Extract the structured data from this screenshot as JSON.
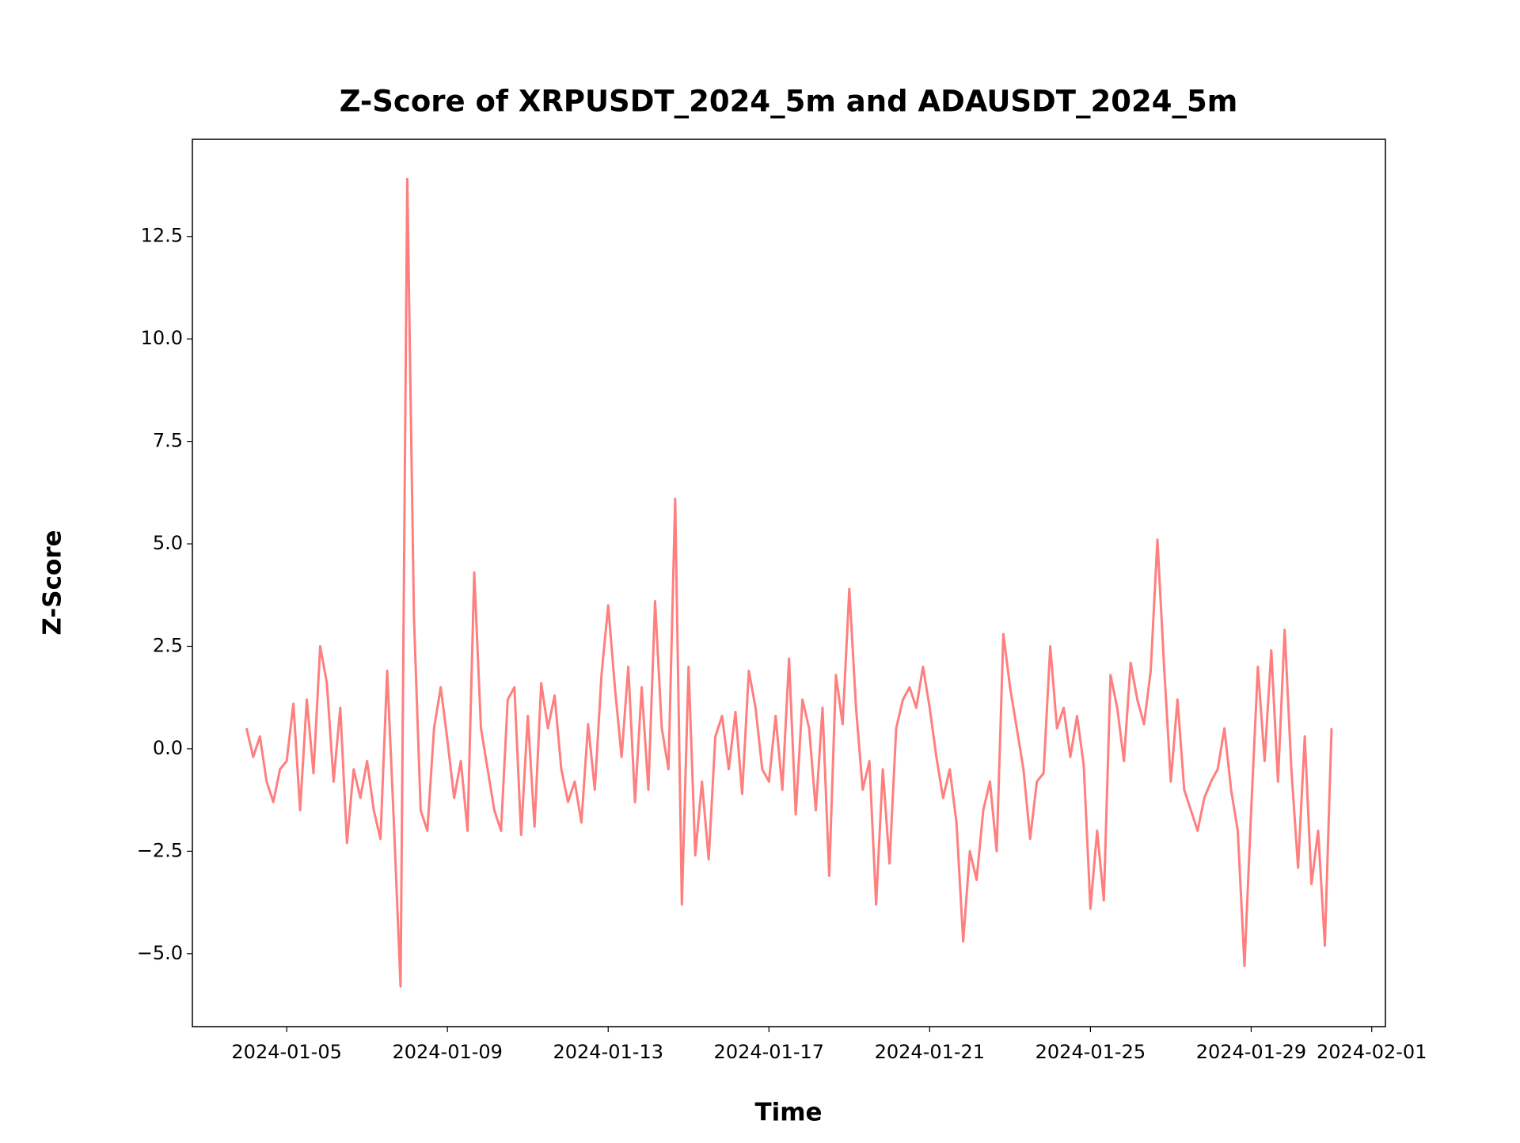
{
  "chart_data": {
    "type": "line",
    "title": "Z-Score of XRPUSDT_2024_5m and ADAUSDT_2024_5m",
    "xlabel": "Time",
    "ylabel": "Z-Score",
    "x": [
      "2024-01-04 00:00",
      "2024-01-04 04:00",
      "2024-01-04 08:00",
      "2024-01-04 12:00",
      "2024-01-04 16:00",
      "2024-01-04 20:00",
      "2024-01-05 00:00",
      "2024-01-05 04:00",
      "2024-01-05 08:00",
      "2024-01-05 12:00",
      "2024-01-05 16:00",
      "2024-01-05 20:00",
      "2024-01-06 00:00",
      "2024-01-06 04:00",
      "2024-01-06 08:00",
      "2024-01-06 12:00",
      "2024-01-06 16:00",
      "2024-01-06 20:00",
      "2024-01-07 00:00",
      "2024-01-07 04:00",
      "2024-01-07 08:00",
      "2024-01-07 12:00",
      "2024-01-07 16:00",
      "2024-01-07 20:00",
      "2024-01-08 00:00",
      "2024-01-08 04:00",
      "2024-01-08 08:00",
      "2024-01-08 12:00",
      "2024-01-08 16:00",
      "2024-01-08 20:00",
      "2024-01-09 00:00",
      "2024-01-09 04:00",
      "2024-01-09 08:00",
      "2024-01-09 12:00",
      "2024-01-09 16:00",
      "2024-01-09 20:00",
      "2024-01-10 00:00",
      "2024-01-10 04:00",
      "2024-01-10 08:00",
      "2024-01-10 12:00",
      "2024-01-10 16:00",
      "2024-01-10 20:00",
      "2024-01-11 00:00",
      "2024-01-11 04:00",
      "2024-01-11 08:00",
      "2024-01-11 12:00",
      "2024-01-11 16:00",
      "2024-01-11 20:00",
      "2024-01-12 00:00",
      "2024-01-12 04:00",
      "2024-01-12 08:00",
      "2024-01-12 12:00",
      "2024-01-12 16:00",
      "2024-01-12 20:00",
      "2024-01-13 00:00",
      "2024-01-13 04:00",
      "2024-01-13 08:00",
      "2024-01-13 12:00",
      "2024-01-13 16:00",
      "2024-01-13 20:00",
      "2024-01-14 00:00",
      "2024-01-14 04:00",
      "2024-01-14 08:00",
      "2024-01-14 12:00",
      "2024-01-14 16:00",
      "2024-01-14 20:00",
      "2024-01-15 00:00",
      "2024-01-15 04:00",
      "2024-01-15 08:00",
      "2024-01-15 12:00",
      "2024-01-15 16:00",
      "2024-01-15 20:00",
      "2024-01-16 00:00",
      "2024-01-16 04:00",
      "2024-01-16 08:00",
      "2024-01-16 12:00",
      "2024-01-16 16:00",
      "2024-01-16 20:00",
      "2024-01-17 00:00",
      "2024-01-17 04:00",
      "2024-01-17 08:00",
      "2024-01-17 12:00",
      "2024-01-17 16:00",
      "2024-01-17 20:00",
      "2024-01-18 00:00",
      "2024-01-18 04:00",
      "2024-01-18 08:00",
      "2024-01-18 12:00",
      "2024-01-18 16:00",
      "2024-01-18 20:00",
      "2024-01-19 00:00",
      "2024-01-19 04:00",
      "2024-01-19 08:00",
      "2024-01-19 12:00",
      "2024-01-19 16:00",
      "2024-01-19 20:00",
      "2024-01-20 00:00",
      "2024-01-20 04:00",
      "2024-01-20 08:00",
      "2024-01-20 12:00",
      "2024-01-20 16:00",
      "2024-01-20 20:00",
      "2024-01-21 00:00",
      "2024-01-21 04:00",
      "2024-01-21 08:00",
      "2024-01-21 12:00",
      "2024-01-21 16:00",
      "2024-01-21 20:00",
      "2024-01-22 00:00",
      "2024-01-22 04:00",
      "2024-01-22 08:00",
      "2024-01-22 12:00",
      "2024-01-22 16:00",
      "2024-01-22 20:00",
      "2024-01-23 00:00",
      "2024-01-23 04:00",
      "2024-01-23 08:00",
      "2024-01-23 12:00",
      "2024-01-23 16:00",
      "2024-01-23 20:00",
      "2024-01-24 00:00",
      "2024-01-24 04:00",
      "2024-01-24 08:00",
      "2024-01-24 12:00",
      "2024-01-24 16:00",
      "2024-01-24 20:00",
      "2024-01-25 00:00",
      "2024-01-25 04:00",
      "2024-01-25 08:00",
      "2024-01-25 12:00",
      "2024-01-25 16:00",
      "2024-01-25 20:00",
      "2024-01-26 00:00",
      "2024-01-26 04:00",
      "2024-01-26 08:00",
      "2024-01-26 12:00",
      "2024-01-26 16:00",
      "2024-01-26 20:00",
      "2024-01-27 00:00",
      "2024-01-27 04:00",
      "2024-01-27 08:00",
      "2024-01-27 12:00",
      "2024-01-27 16:00",
      "2024-01-27 20:00",
      "2024-01-28 00:00",
      "2024-01-28 04:00",
      "2024-01-28 08:00",
      "2024-01-28 12:00",
      "2024-01-28 16:00",
      "2024-01-28 20:00",
      "2024-01-29 00:00",
      "2024-01-29 04:00",
      "2024-01-29 08:00",
      "2024-01-29 12:00",
      "2024-01-29 16:00",
      "2024-01-29 20:00",
      "2024-01-30 00:00",
      "2024-01-30 04:00",
      "2024-01-30 08:00",
      "2024-01-30 12:00",
      "2024-01-30 16:00",
      "2024-01-30 20:00",
      "2024-01-31 00:00"
    ],
    "series": [
      {
        "color": "#ff7f7f",
        "values": [
          0.5,
          -0.2,
          0.3,
          -0.8,
          -1.3,
          -0.5,
          -0.3,
          1.1,
          -1.5,
          1.2,
          -0.6,
          2.5,
          1.6,
          -0.8,
          1.0,
          -2.3,
          -0.5,
          -1.2,
          -0.3,
          -1.5,
          -2.2,
          1.9,
          -1.8,
          -5.8,
          13.9,
          3.2,
          -1.5,
          -2.0,
          0.5,
          1.5,
          0.2,
          -1.2,
          -0.3,
          -2.0,
          4.3,
          0.5,
          -0.5,
          -1.5,
          -2.0,
          1.2,
          1.5,
          -2.1,
          0.8,
          -1.9,
          1.6,
          0.5,
          1.3,
          -0.5,
          -1.3,
          -0.8,
          -1.8,
          0.6,
          -1.0,
          1.8,
          3.5,
          1.5,
          -0.2,
          2.0,
          -1.3,
          1.5,
          -1.0,
          3.6,
          0.5,
          -0.5,
          6.1,
          -3.8,
          2.0,
          -2.6,
          -0.8,
          -2.7,
          0.3,
          0.8,
          -0.5,
          0.9,
          -1.1,
          1.9,
          1.0,
          -0.5,
          -0.8,
          0.8,
          -1.0,
          2.2,
          -1.6,
          1.2,
          0.5,
          -1.5,
          1.0,
          -3.1,
          1.8,
          0.6,
          3.9,
          1.0,
          -1.0,
          -0.3,
          -3.8,
          -0.5,
          -2.8,
          0.5,
          1.2,
          1.5,
          1.0,
          2.0,
          1.0,
          -0.2,
          -1.2,
          -0.5,
          -1.8,
          -4.7,
          -2.5,
          -3.2,
          -1.5,
          -0.8,
          -2.5,
          2.8,
          1.5,
          0.5,
          -0.5,
          -2.2,
          -0.8,
          -0.6,
          2.5,
          0.5,
          1.0,
          -0.2,
          0.8,
          -0.4,
          -3.9,
          -2.0,
          -3.7,
          1.8,
          1.0,
          -0.3,
          2.1,
          1.2,
          0.6,
          1.9,
          5.1,
          2.0,
          -0.8,
          1.2,
          -1.0,
          -1.5,
          -2.0,
          -1.2,
          -0.8,
          -0.5,
          0.5,
          -1.0,
          -2.0,
          -5.3,
          -1.5,
          2.0,
          -0.3,
          2.4,
          -0.8,
          2.9,
          -0.5,
          -2.9,
          0.3,
          -3.3,
          -2.0,
          -4.8,
          0.5
        ]
      }
    ],
    "xlim": [
      "2024-01-02 15:40",
      "2024-02-01 08:10"
    ],
    "xticks": [
      "2024-01-05",
      "2024-01-09",
      "2024-01-13",
      "2024-01-17",
      "2024-01-21",
      "2024-01-25",
      "2024-01-29",
      "2024-02-01"
    ],
    "ylim": [
      -6.78,
      14.87
    ],
    "yticks": [
      {
        "value": -5,
        "label": "−5.0"
      },
      {
        "value": -2.5,
        "label": "−2.5"
      },
      {
        "value": 0,
        "label": "0.0"
      },
      2.5,
      {
        "value": 5,
        "label": "5.0"
      },
      7.5,
      {
        "value": 10,
        "label": "10.0"
      },
      12.5
    ],
    "grid": false
  }
}
